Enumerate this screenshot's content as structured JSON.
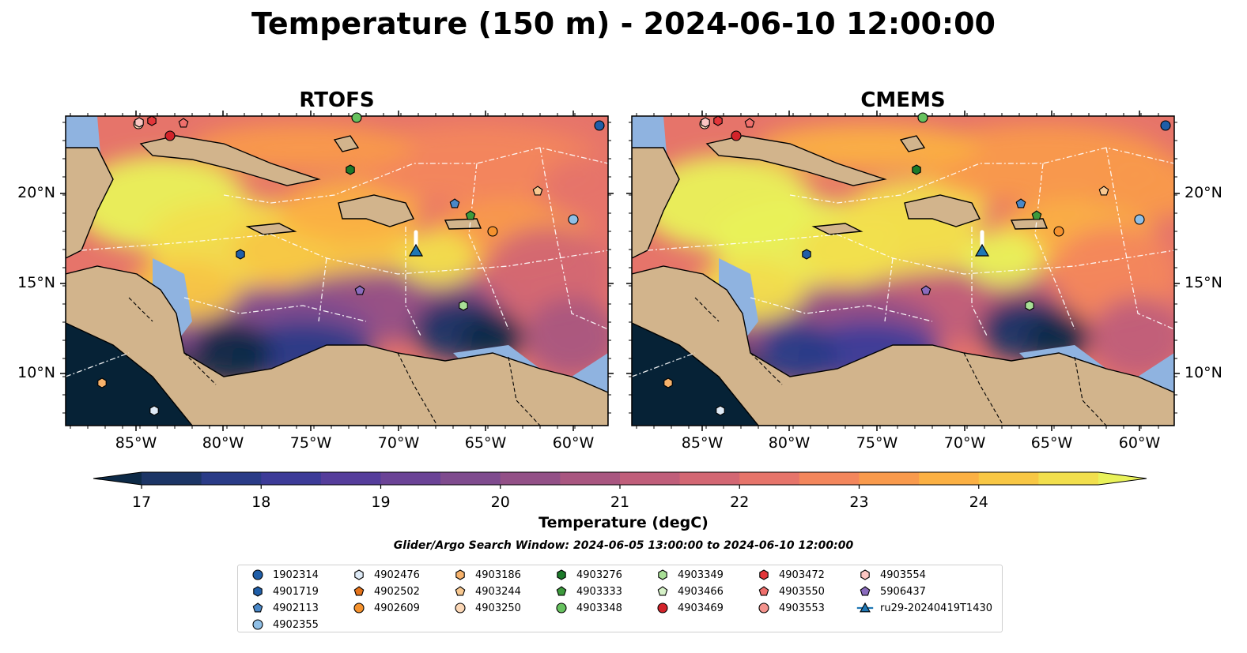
{
  "title": "Temperature (150 m) - 2024-06-10 12:00:00",
  "panels": [
    {
      "title": "RTOFS"
    },
    {
      "title": "CMEMS"
    }
  ],
  "x_ticks": [
    "85°W",
    "80°W",
    "75°W",
    "70°W",
    "65°W",
    "60°W"
  ],
  "y_ticks": [
    "20°N",
    "15°N",
    "10°N"
  ],
  "colorbar": {
    "label": "Temperature (degC)",
    "ticks": [
      "17",
      "18",
      "19",
      "20",
      "21",
      "22",
      "23",
      "24"
    ],
    "colors": [
      "#0d2a47",
      "#1c3566",
      "#2a3b87",
      "#3d3b98",
      "#553d9b",
      "#6b4396",
      "#7f4b8e",
      "#935087",
      "#a95680",
      "#c05e7a",
      "#d36773",
      "#e6746a",
      "#f3865c",
      "#f99a4c",
      "#fbb043",
      "#f8c744",
      "#f2df4d",
      "#e9f25a"
    ]
  },
  "search_window": "Glider/Argo Search Window: 2024-06-05 13:00:00 to 2024-06-10 12:00:00",
  "legend": [
    {
      "id": "1902314",
      "marker": "circle",
      "color": "#1f5ea8"
    },
    {
      "id": "4901719",
      "marker": "hexagon",
      "color": "#1f5ea8"
    },
    {
      "id": "4902113",
      "marker": "pentagon",
      "color": "#4a88c8"
    },
    {
      "id": "4902355",
      "marker": "circle",
      "color": "#8fbfe6"
    },
    {
      "id": "4902476",
      "marker": "hexagon",
      "color": "#deeaf6"
    },
    {
      "id": "4902502",
      "marker": "pentagon",
      "color": "#e5731a"
    },
    {
      "id": "4902609",
      "marker": "circle",
      "color": "#f5922e"
    },
    {
      "id": "4903186",
      "marker": "hexagon",
      "color": "#f7b26b"
    },
    {
      "id": "4903244",
      "marker": "pentagon",
      "color": "#f8c890"
    },
    {
      "id": "4903250",
      "marker": "circle",
      "color": "#fbd7b6"
    },
    {
      "id": "4903276",
      "marker": "hexagon",
      "color": "#1c7a2a"
    },
    {
      "id": "4903333",
      "marker": "pentagon",
      "color": "#3c9a3c"
    },
    {
      "id": "4903348",
      "marker": "circle",
      "color": "#67c25f"
    },
    {
      "id": "4903349",
      "marker": "hexagon",
      "color": "#a8df96"
    },
    {
      "id": "4903466",
      "marker": "pentagon",
      "color": "#d6f2c8"
    },
    {
      "id": "4903469",
      "marker": "circle",
      "color": "#d3232a"
    },
    {
      "id": "4903472",
      "marker": "hexagon",
      "color": "#e2363a"
    },
    {
      "id": "4903550",
      "marker": "pentagon",
      "color": "#ef6f6c"
    },
    {
      "id": "4903553",
      "marker": "circle",
      "color": "#f4938d"
    },
    {
      "id": "4903554",
      "marker": "hexagon",
      "color": "#fbc6c2"
    },
    {
      "id": "5906437",
      "marker": "pentagon",
      "color": "#8a6bbd"
    },
    {
      "id": "ru29-20240419T1430",
      "marker": "triangle-line",
      "color": "#1f77b4"
    }
  ]
}
